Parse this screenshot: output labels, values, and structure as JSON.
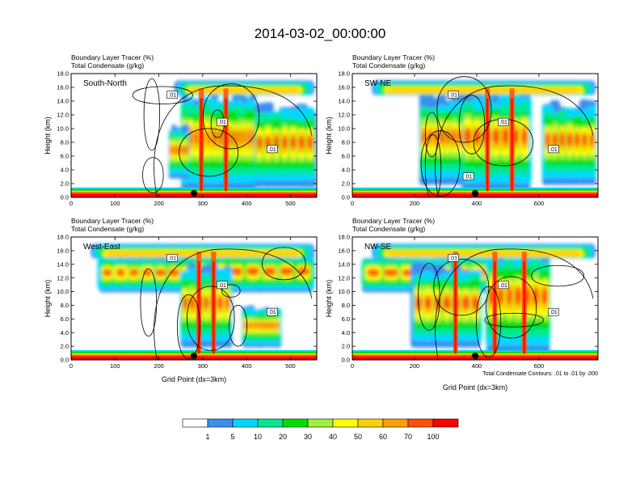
{
  "figure": {
    "title": "2014-03-02_00:00:00",
    "contour_note": "Total Condensate Contours: .01 to .01 by .000"
  },
  "colorbar": {
    "colors": [
      "#ffffff",
      "#3a8fef",
      "#00d8ff",
      "#00e890",
      "#00e000",
      "#a0f040",
      "#ffff00",
      "#ffd000",
      "#ffa000",
      "#ff5000",
      "#ff0000"
    ],
    "labels": [
      "1",
      "5",
      "10",
      "20",
      "30",
      "40",
      "50",
      "60",
      "70",
      "100"
    ]
  },
  "chart_data": [
    {
      "type": "heatmap",
      "panel_label": "South-North",
      "header_lines": [
        "Boundary Layer Tracer   (%)",
        "Total Condensate   (g/kg)"
      ],
      "ylabel": "Height (km)",
      "xlabel": "",
      "xlim": [
        0,
        560
      ],
      "ylim": [
        0,
        18
      ],
      "xticks": [
        0,
        100,
        200,
        300,
        400,
        500
      ],
      "yticks": [
        "0.0",
        "2.0",
        "4.0",
        "6.0",
        "8.0",
        "10.0",
        "12.0",
        "14.0",
        "16.0",
        "18.0"
      ],
      "contour_labels": [
        ".01",
        ".01",
        ".01"
      ],
      "marker_x": 280
    },
    {
      "type": "heatmap",
      "panel_label": "SW-NE",
      "header_lines": [
        "Boundary Layer Tracer   (%)",
        "Total Condensate   (g/kg)"
      ],
      "ylabel": "Height (km)",
      "xlabel": "",
      "xlim": [
        0,
        790
      ],
      "ylim": [
        0,
        18
      ],
      "xticks": [
        0,
        200,
        400,
        600
      ],
      "yticks": [
        "0.0",
        "2.0",
        "4.0",
        "6.0",
        "8.0",
        "10.0",
        "12.0",
        "14.0",
        "16.0",
        "18.0"
      ],
      "contour_labels": [
        ".01",
        ".01",
        ".01",
        ".01",
        ".01"
      ],
      "marker_x": 395
    },
    {
      "type": "heatmap",
      "panel_label": "West-East",
      "header_lines": [
        "Boundary Layer Tracer   (%)",
        "Total Condensate   (g/kg)"
      ],
      "ylabel": "Height (km)",
      "xlabel": "Grid Point (dx=3km)",
      "xlim": [
        0,
        560
      ],
      "ylim": [
        0,
        18
      ],
      "xticks": [
        0,
        100,
        200,
        300,
        400,
        500
      ],
      "yticks": [
        "0.0",
        "2.0",
        "4.0",
        "6.0",
        "8.0",
        "10.0",
        "12.0",
        "14.0",
        "16.0",
        "18.0"
      ],
      "contour_labels": [
        ".01",
        ".01",
        ".01"
      ],
      "marker_x": 280
    },
    {
      "type": "heatmap",
      "panel_label": "NW-SE",
      "header_lines": [
        "Boundary Layer Tracer   (%)",
        "Total Condensate   (g/kg)"
      ],
      "ylabel": "Height (km)",
      "xlabel": "Grid Point (dx=3km)",
      "xlim": [
        0,
        790
      ],
      "ylim": [
        0,
        18
      ],
      "xticks": [
        0,
        200,
        400,
        600
      ],
      "yticks": [
        "0.0",
        "2.0",
        "4.0",
        "6.0",
        "8.0",
        "10.0",
        "12.0",
        "14.0",
        "16.0",
        "18.0"
      ],
      "contour_labels": [
        ".01",
        ".01",
        ".01"
      ],
      "marker_x": 395
    }
  ]
}
